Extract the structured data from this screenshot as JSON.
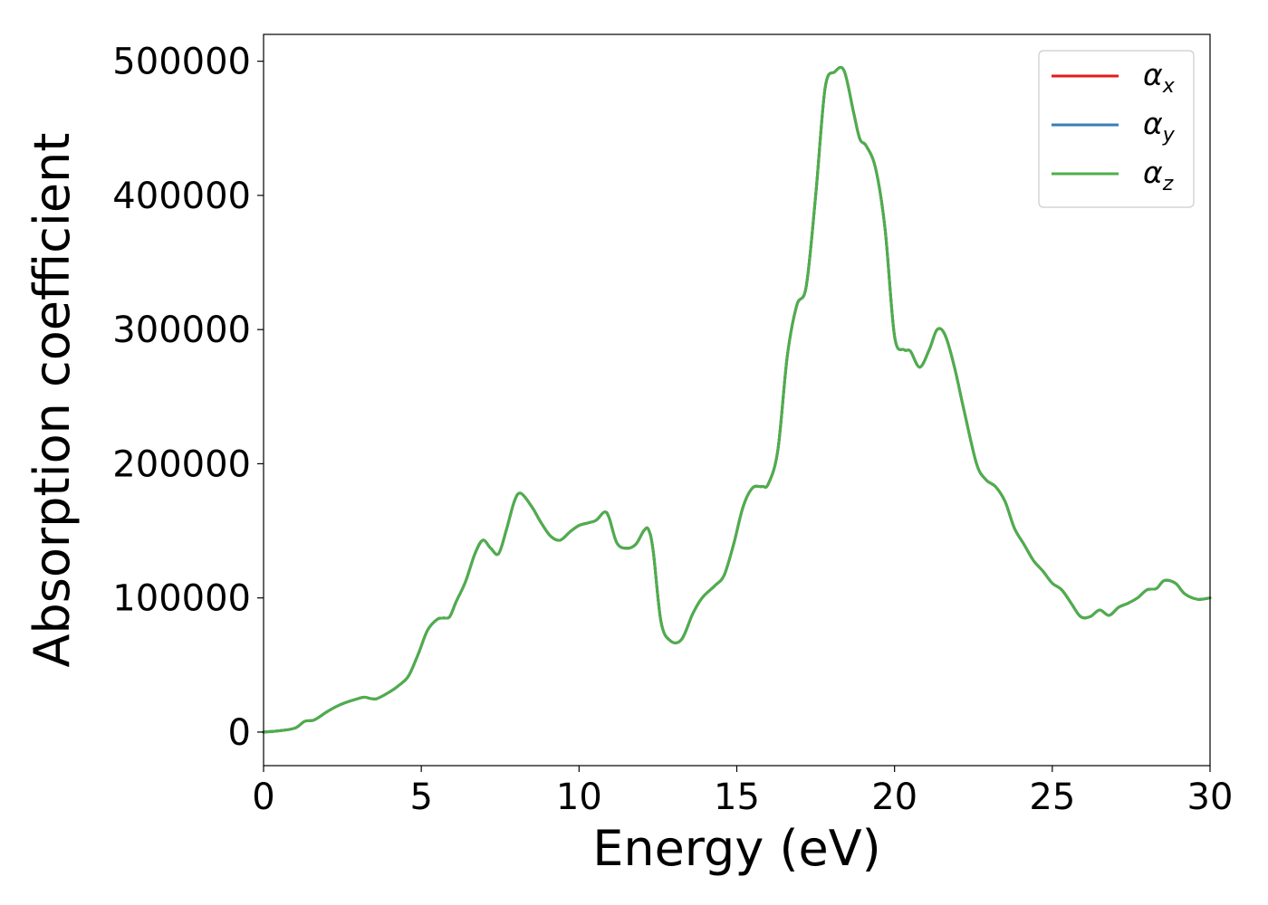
{
  "chart_data": {
    "type": "line",
    "xlabel": "Energy (eV)",
    "ylabel": "Absorption coefficient",
    "xlim": [
      0,
      30
    ],
    "ylim": [
      -25000,
      520000
    ],
    "xticks": [
      0,
      5,
      10,
      15,
      20,
      25,
      30
    ],
    "xtick_labels": [
      "0",
      "5",
      "10",
      "15",
      "20",
      "25",
      "30"
    ],
    "yticks": [
      0,
      100000,
      200000,
      300000,
      400000,
      500000
    ],
    "ytick_labels": [
      "0",
      "100000",
      "200000",
      "300000",
      "400000",
      "500000"
    ],
    "grid": false,
    "legend_position": "top-right",
    "x": [
      0,
      0.5,
      1.0,
      1.3,
      1.6,
      2.0,
      2.3,
      2.6,
      3.0,
      3.2,
      3.4,
      3.6,
      4.0,
      4.3,
      4.6,
      4.9,
      5.2,
      5.5,
      5.7,
      5.9,
      6.1,
      6.4,
      6.7,
      6.95,
      7.2,
      7.45,
      7.7,
      7.95,
      8.15,
      8.5,
      8.8,
      9.1,
      9.4,
      9.7,
      10.0,
      10.3,
      10.55,
      10.8,
      10.95,
      11.2,
      11.5,
      11.8,
      12.05,
      12.2,
      12.35,
      12.6,
      12.9,
      13.25,
      13.6,
      13.9,
      14.3,
      14.6,
      14.9,
      15.2,
      15.5,
      15.8,
      16.0,
      16.3,
      16.6,
      16.9,
      17.2,
      17.5,
      17.8,
      18.1,
      18.4,
      18.7,
      18.9,
      19.1,
      19.4,
      19.7,
      20.0,
      20.3,
      20.5,
      20.8,
      21.1,
      21.35,
      21.6,
      21.9,
      22.2,
      22.6,
      22.9,
      23.2,
      23.5,
      23.8,
      24.1,
      24.4,
      24.7,
      25.0,
      25.3,
      25.6,
      25.9,
      26.2,
      26.5,
      26.8,
      27.1,
      27.4,
      27.7,
      28.0,
      28.3,
      28.55,
      28.9,
      29.2,
      29.6,
      30.0
    ],
    "series": [
      {
        "name": "αx",
        "legend_main": "α",
        "legend_sub": "x",
        "color": "#e41a1c",
        "y": [
          0,
          1000,
          3000,
          8000,
          9000,
          15000,
          19000,
          22000,
          25000,
          26000,
          25000,
          25000,
          30000,
          35000,
          42000,
          58000,
          76000,
          84000,
          85000,
          86000,
          97000,
          112000,
          133000,
          143000,
          137000,
          133000,
          151000,
          172000,
          178000,
          168000,
          156000,
          146000,
          143000,
          149000,
          154000,
          156000,
          158000,
          164000,
          160000,
          141000,
          137000,
          140000,
          150000,
          151000,
          135000,
          82000,
          68000,
          69000,
          88000,
          100000,
          109000,
          117000,
          140000,
          168000,
          182000,
          183000,
          185000,
          210000,
          280000,
          318000,
          332000,
          400000,
          480000,
          492000,
          493000,
          462000,
          442000,
          437000,
          420000,
          375000,
          295000,
          285000,
          284000,
          272000,
          285000,
          300000,
          296000,
          272000,
          240000,
          200000,
          188000,
          183000,
          172000,
          152000,
          140000,
          128000,
          120000,
          111000,
          106000,
          96000,
          86000,
          86000,
          91000,
          87000,
          93000,
          96000,
          100000,
          106000,
          107000,
          113000,
          111000,
          103000,
          99000,
          100000
        ]
      },
      {
        "name": "αy",
        "legend_main": "α",
        "legend_sub": "y",
        "color": "#377eb8",
        "y": [
          0,
          1000,
          3000,
          8000,
          9000,
          15000,
          19000,
          22000,
          25000,
          26000,
          25000,
          25000,
          30000,
          35000,
          42000,
          58000,
          76000,
          84000,
          85000,
          86000,
          97000,
          112000,
          133000,
          143000,
          137000,
          133000,
          151000,
          172000,
          178000,
          168000,
          156000,
          146000,
          143000,
          149000,
          154000,
          156000,
          158000,
          164000,
          160000,
          141000,
          137000,
          140000,
          150000,
          151000,
          135000,
          82000,
          68000,
          69000,
          88000,
          100000,
          109000,
          117000,
          140000,
          168000,
          182000,
          183000,
          185000,
          210000,
          280000,
          318000,
          332000,
          400000,
          480000,
          492000,
          493000,
          462000,
          442000,
          437000,
          420000,
          375000,
          295000,
          285000,
          284000,
          272000,
          285000,
          300000,
          296000,
          272000,
          240000,
          200000,
          188000,
          183000,
          172000,
          152000,
          140000,
          128000,
          120000,
          111000,
          106000,
          96000,
          86000,
          86000,
          91000,
          87000,
          93000,
          96000,
          100000,
          106000,
          107000,
          113000,
          111000,
          103000,
          99000,
          100000
        ]
      },
      {
        "name": "αz",
        "legend_main": "α",
        "legend_sub": "z",
        "color": "#4daf4a",
        "y": [
          0,
          1000,
          3000,
          8000,
          9000,
          15000,
          19000,
          22000,
          25000,
          26000,
          25000,
          25000,
          30000,
          35000,
          42000,
          58000,
          76000,
          84000,
          85000,
          86000,
          97000,
          112000,
          133000,
          143000,
          137000,
          133000,
          151000,
          172000,
          178000,
          168000,
          156000,
          146000,
          143000,
          149000,
          154000,
          156000,
          158000,
          164000,
          160000,
          141000,
          137000,
          140000,
          150000,
          151000,
          135000,
          82000,
          68000,
          69000,
          88000,
          100000,
          109000,
          117000,
          140000,
          168000,
          182000,
          183000,
          185000,
          210000,
          280000,
          318000,
          332000,
          400000,
          480000,
          492000,
          493000,
          462000,
          442000,
          437000,
          420000,
          375000,
          295000,
          285000,
          284000,
          272000,
          285000,
          300000,
          296000,
          272000,
          240000,
          200000,
          188000,
          183000,
          172000,
          152000,
          140000,
          128000,
          120000,
          111000,
          106000,
          96000,
          86000,
          86000,
          91000,
          87000,
          93000,
          96000,
          100000,
          106000,
          107000,
          113000,
          111000,
          103000,
          99000,
          100000
        ]
      }
    ]
  }
}
